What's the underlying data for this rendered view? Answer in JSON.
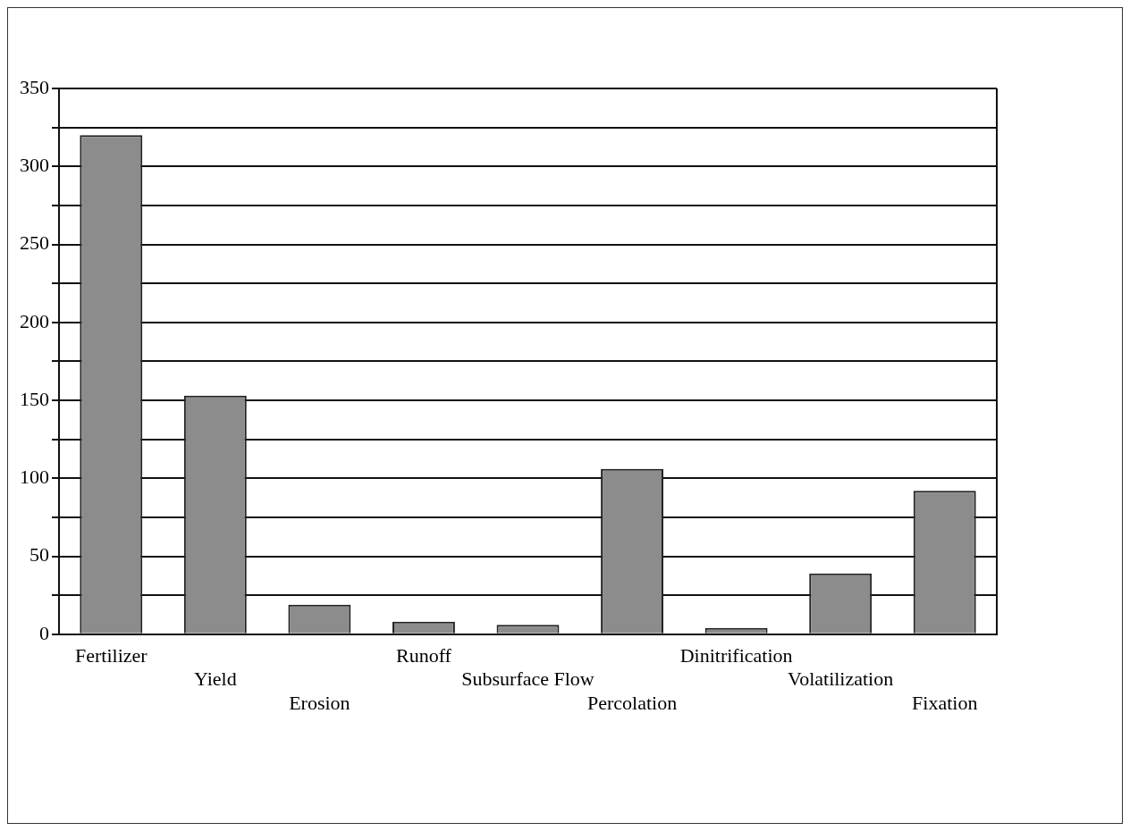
{
  "chart_data": {
    "type": "bar",
    "categories": [
      "Fertilizer",
      "Yield",
      "Erosion",
      "Runoff",
      "Subsurface Flow",
      "Percolation",
      "Dinitrification",
      "Volatilization",
      "Fixation"
    ],
    "values": [
      320,
      153,
      19,
      8,
      6,
      106,
      4,
      39,
      92
    ],
    "color": "#8c8c8c",
    "ylim": [
      0,
      350
    ],
    "yticks": [
      0,
      {
        "value": 25,
        "label": null
      },
      50,
      {
        "value": 75,
        "label": null
      },
      100,
      {
        "value": 125,
        "label": null
      },
      150,
      {
        "value": 175,
        "label": null
      },
      200,
      {
        "value": 225,
        "label": null
      },
      250,
      {
        "value": 275,
        "label": null
      },
      300,
      {
        "value": 325,
        "label": null
      },
      350
    ],
    "grid": "y",
    "legend": false
  }
}
